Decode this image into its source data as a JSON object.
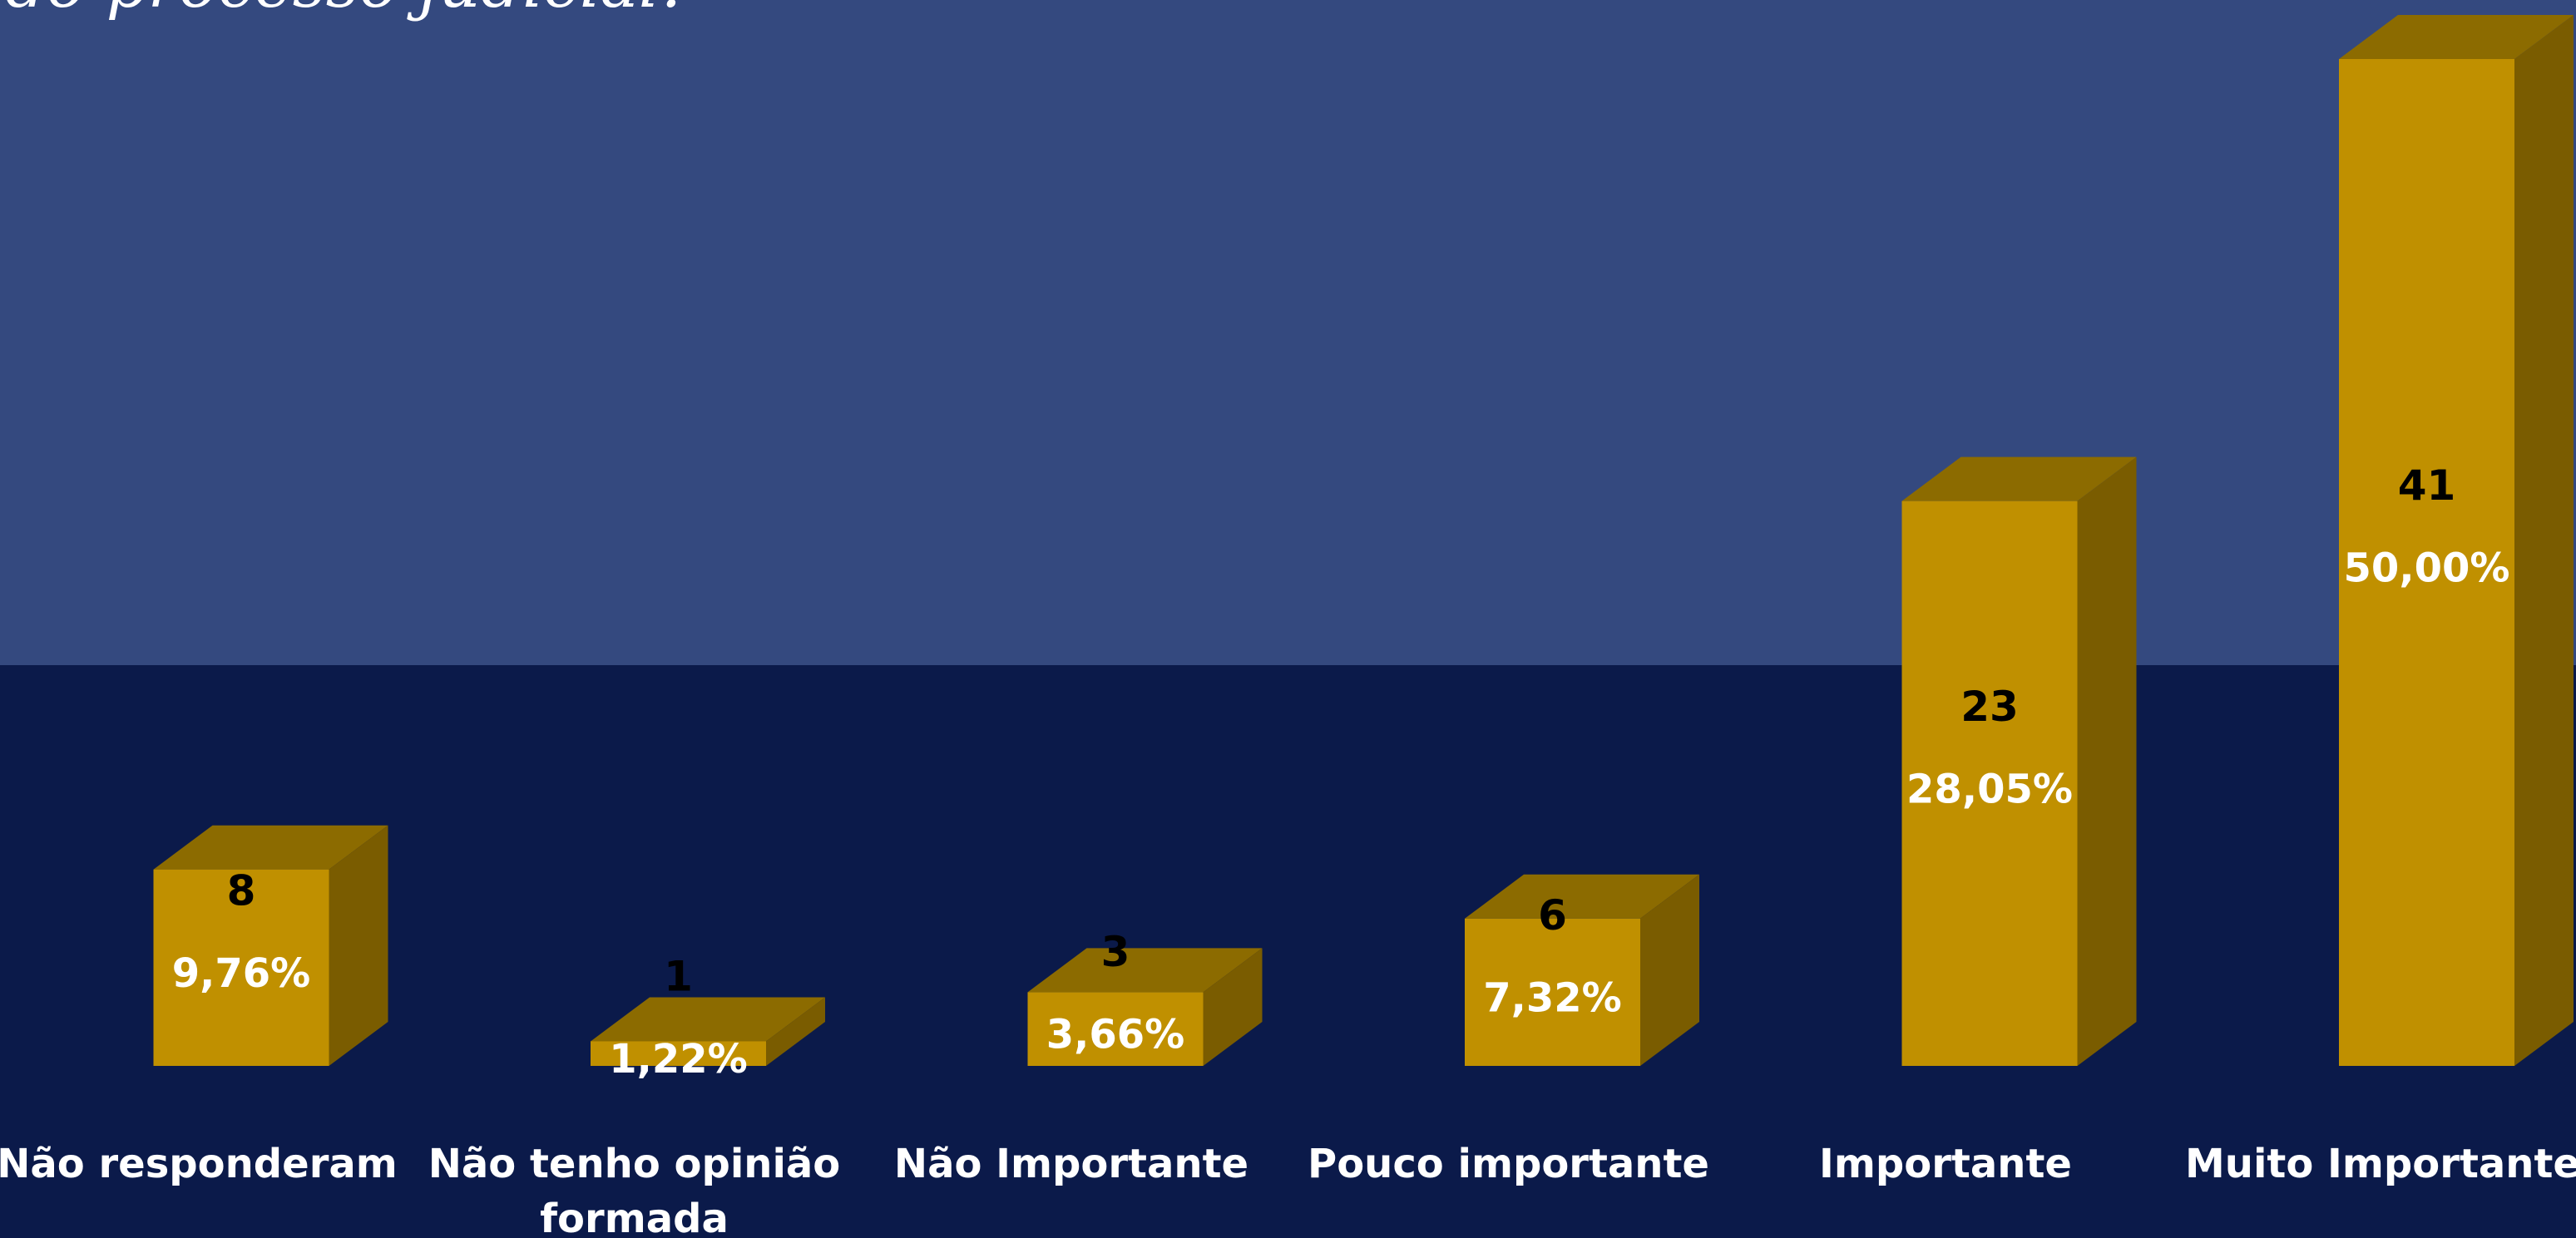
{
  "chart_data": {
    "type": "bar",
    "title": "do processo judicial?",
    "categories": [
      "Não responderam",
      "Não tenho opinião formada",
      "Não Importante",
      "Pouco importante",
      "Importante",
      "Muito Importante"
    ],
    "values": [
      8,
      1,
      3,
      6,
      23,
      41
    ],
    "percent_labels": [
      "9,76%",
      "1,22%",
      "3,66%",
      "7,32%",
      "28,05%",
      "50,00%"
    ],
    "color": "#c09000"
  }
}
